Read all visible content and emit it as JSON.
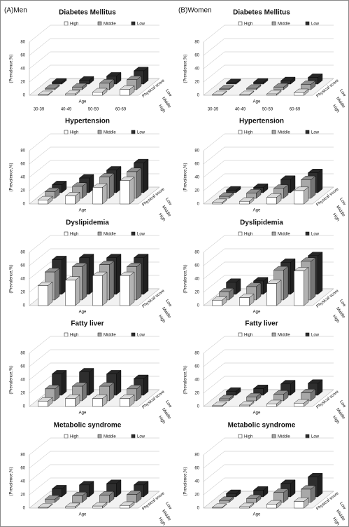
{
  "panel_labels": [
    "(A)Men",
    "(B)Women"
  ],
  "chart_data": [
    {
      "type": "bar",
      "title": "Diabetes Mellitus",
      "y_label": "(Prevalence,%)",
      "x_label": "Age",
      "z_label": "Physical score",
      "categories": [
        "30-39",
        "40-49",
        "50-59",
        "60-69"
      ],
      "ylim": [
        0,
        80
      ],
      "yticks": [
        0,
        20,
        40,
        60,
        80
      ],
      "series": [
        {
          "name": "High",
          "color": "#ffffff",
          "values": [
            1,
            2,
            5,
            9
          ]
        },
        {
          "name": "Middle",
          "color": "#a8a8a8",
          "values": [
            2,
            4,
            10,
            15
          ]
        },
        {
          "name": "Low",
          "color": "#2e2e2e",
          "values": [
            3,
            6,
            12,
            20
          ]
        }
      ]
    },
    {
      "type": "bar",
      "title": "Diabetes Mellitus",
      "y_label": "(Prevalence,%)",
      "x_label": "Age",
      "z_label": "Physical score",
      "categories": [
        "30-39",
        "40-49",
        "50-59",
        "60-69"
      ],
      "ylim": [
        0,
        80
      ],
      "yticks": [
        0,
        20,
        40,
        60,
        80
      ],
      "series": [
        {
          "name": "High",
          "color": "#ffffff",
          "values": [
            1,
            1,
            2,
            4
          ]
        },
        {
          "name": "Middle",
          "color": "#a8a8a8",
          "values": [
            1,
            2,
            4,
            8
          ]
        },
        {
          "name": "Low",
          "color": "#2e2e2e",
          "values": [
            2,
            3,
            5,
            10
          ]
        }
      ]
    },
    {
      "type": "bar",
      "title": "Hypertension",
      "y_label": "(Prevalence,%)",
      "x_label": "Age",
      "z_label": "Physical score",
      "categories": [
        null,
        null,
        null,
        null
      ],
      "ylim": [
        0,
        80
      ],
      "yticks": [
        0,
        20,
        40,
        60,
        80
      ],
      "series": [
        {
          "name": "High",
          "color": "#ffffff",
          "values": [
            6,
            12,
            25,
            35
          ]
        },
        {
          "name": "Middle",
          "color": "#a8a8a8",
          "values": [
            10,
            18,
            32,
            40
          ]
        },
        {
          "name": "Low",
          "color": "#2e2e2e",
          "values": [
            12,
            22,
            34,
            45
          ]
        }
      ]
    },
    {
      "type": "bar",
      "title": "Hypertension",
      "y_label": "(Prevalence,%)",
      "x_label": "Age",
      "z_label": "Physical score",
      "categories": [
        null,
        null,
        null,
        null
      ],
      "ylim": [
        0,
        80
      ],
      "yticks": [
        0,
        20,
        40,
        60,
        80
      ],
      "series": [
        {
          "name": "High",
          "color": "#ffffff",
          "values": [
            2,
            4,
            10,
            20
          ]
        },
        {
          "name": "Middle",
          "color": "#a8a8a8",
          "values": [
            3,
            8,
            15,
            28
          ]
        },
        {
          "name": "Low",
          "color": "#2e2e2e",
          "values": [
            4,
            8,
            20,
            30
          ]
        }
      ]
    },
    {
      "type": "bar",
      "title": "Dyslipidemia",
      "y_label": "(Prevalence,%)",
      "x_label": "Age",
      "z_label": "Physical score",
      "categories": [
        null,
        null,
        null,
        null
      ],
      "ylim": [
        0,
        80
      ],
      "yticks": [
        0,
        20,
        40,
        60,
        80
      ],
      "series": [
        {
          "name": "High",
          "color": "#ffffff",
          "values": [
            30,
            38,
            45,
            45
          ]
        },
        {
          "name": "Middle",
          "color": "#a8a8a8",
          "values": [
            42,
            50,
            53,
            50
          ]
        },
        {
          "name": "Low",
          "color": "#2e2e2e",
          "values": [
            52,
            55,
            55,
            55
          ]
        }
      ]
    },
    {
      "type": "bar",
      "title": "Dyslipidemia",
      "y_label": "(Prevalence,%)",
      "x_label": "Age",
      "z_label": "Physical score",
      "categories": [
        null,
        null,
        null,
        null
      ],
      "ylim": [
        0,
        80
      ],
      "yticks": [
        0,
        20,
        40,
        60,
        80
      ],
      "series": [
        {
          "name": "High",
          "color": "#ffffff",
          "values": [
            8,
            12,
            33,
            52
          ]
        },
        {
          "name": "Middle",
          "color": "#a8a8a8",
          "values": [
            12,
            20,
            45,
            58
          ]
        },
        {
          "name": "Low",
          "color": "#2e2e2e",
          "values": [
            18,
            20,
            48,
            58
          ]
        }
      ]
    },
    {
      "type": "bar",
      "title": "Fatty liver",
      "y_label": "(Prevalence,%)",
      "x_label": "Age",
      "z_label": "Physical score",
      "categories": [
        null,
        null,
        null,
        null
      ],
      "ylim": [
        0,
        80
      ],
      "yticks": [
        0,
        20,
        40,
        60,
        80
      ],
      "series": [
        {
          "name": "High",
          "color": "#ffffff",
          "values": [
            8,
            12,
            12,
            12
          ]
        },
        {
          "name": "Middle",
          "color": "#a8a8a8",
          "values": [
            18,
            22,
            22,
            18
          ]
        },
        {
          "name": "Low",
          "color": "#2e2e2e",
          "values": [
            32,
            35,
            32,
            25
          ]
        }
      ]
    },
    {
      "type": "bar",
      "title": "Fatty liver",
      "y_label": "(Prevalence,%)",
      "x_label": "Age",
      "z_label": "Physical score",
      "categories": [
        null,
        null,
        null,
        null
      ],
      "ylim": [
        0,
        80
      ],
      "yticks": [
        0,
        20,
        40,
        60,
        80
      ],
      "series": [
        {
          "name": "High",
          "color": "#ffffff",
          "values": [
            1,
            2,
            4,
            5
          ]
        },
        {
          "name": "Middle",
          "color": "#a8a8a8",
          "values": [
            3,
            6,
            10,
            12
          ]
        },
        {
          "name": "Low",
          "color": "#2e2e2e",
          "values": [
            6,
            10,
            17,
            18
          ]
        }
      ]
    },
    {
      "type": "bar",
      "title": "Metabolic syndrome",
      "y_label": "(Prevalence,%)",
      "x_label": "Age",
      "z_label": "Physical score",
      "categories": [
        null,
        null,
        null,
        null
      ],
      "ylim": [
        0,
        80
      ],
      "yticks": [
        0,
        20,
        40,
        60,
        80
      ],
      "series": [
        {
          "name": "High",
          "color": "#ffffff",
          "values": [
            1,
            2,
            3,
            4
          ]
        },
        {
          "name": "Middle",
          "color": "#a8a8a8",
          "values": [
            5,
            10,
            11,
            12
          ]
        },
        {
          "name": "Low",
          "color": "#2e2e2e",
          "values": [
            12,
            18,
            20,
            18
          ]
        }
      ]
    },
    {
      "type": "bar",
      "title": "Metabolic syndrome",
      "y_label": "(Prevalence,%)",
      "x_label": "Age",
      "z_label": "Physical score",
      "categories": [
        null,
        null,
        null,
        null
      ],
      "ylim": [
        0,
        80
      ],
      "yticks": [
        0,
        20,
        40,
        60,
        80
      ],
      "series": [
        {
          "name": "High",
          "color": "#ffffff",
          "values": [
            1,
            2,
            6,
            10
          ]
        },
        {
          "name": "Middle",
          "color": "#a8a8a8",
          "values": [
            3,
            6,
            15,
            20
          ]
        },
        {
          "name": "Low",
          "color": "#2e2e2e",
          "values": [
            5,
            10,
            20,
            30
          ]
        }
      ]
    }
  ]
}
